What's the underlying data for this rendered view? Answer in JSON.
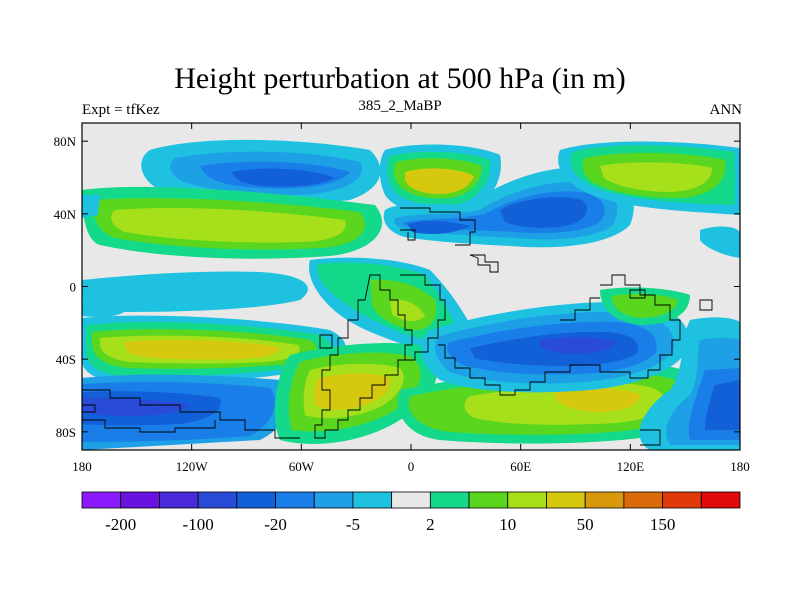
{
  "title": "Height perturbation at 500 hPa (in m)",
  "left_string": "Expt = tfKez",
  "center_string": "385_2_MaBP",
  "right_string": "ANN",
  "axes": {
    "x_ticks": [
      {
        "lon": -180,
        "label": "180"
      },
      {
        "lon": -120,
        "label": "120W"
      },
      {
        "lon": -60,
        "label": "60W"
      },
      {
        "lon": 0,
        "label": "0"
      },
      {
        "lon": 60,
        "label": "60E"
      },
      {
        "lon": 120,
        "label": "120E"
      },
      {
        "lon": 180,
        "label": "180"
      }
    ],
    "y_ticks": [
      {
        "lat": 80,
        "label": "80N"
      },
      {
        "lat": 40,
        "label": "40N"
      },
      {
        "lat": 0,
        "label": "0"
      },
      {
        "lat": -40,
        "label": "40S"
      },
      {
        "lat": -80,
        "label": "80S"
      }
    ],
    "lon_range": [
      -180,
      180
    ],
    "lat_range": [
      -90,
      90
    ]
  },
  "colorbar": {
    "colors": [
      "#8c1aff",
      "#6a12e0",
      "#4a2ad8",
      "#2a4ad8",
      "#1260d8",
      "#1a7ee8",
      "#1ea0e6",
      "#1ec2e0",
      "#e8e8e8",
      "#14d88a",
      "#5ad61e",
      "#a6e01a",
      "#d6c80e",
      "#d89a0c",
      "#dc6a0a",
      "#e03a0a",
      "#e00a0a"
    ],
    "labels": [
      {
        "index": 1,
        "text": "-200"
      },
      {
        "index": 3,
        "text": "-100"
      },
      {
        "index": 5,
        "text": "-20"
      },
      {
        "index": 7,
        "text": "-5"
      },
      {
        "index": 9,
        "text": "2"
      },
      {
        "index": 11,
        "text": "10"
      },
      {
        "index": 13,
        "text": "50"
      },
      {
        "index": 15,
        "text": "150"
      }
    ]
  },
  "map_fill_colors": {
    "background": "#e8e8e8",
    "lightblue": "#1ec2e0",
    "midblue": "#1ea0e6",
    "blue": "#1a7ee8",
    "darkblue": "#1260d8",
    "navy": "#2a4ad8",
    "green": "#5ad61e",
    "teal": "#14d88a",
    "yellowgreen": "#a6e01a",
    "mustard": "#d6c80e",
    "coastline": "#000000"
  }
}
